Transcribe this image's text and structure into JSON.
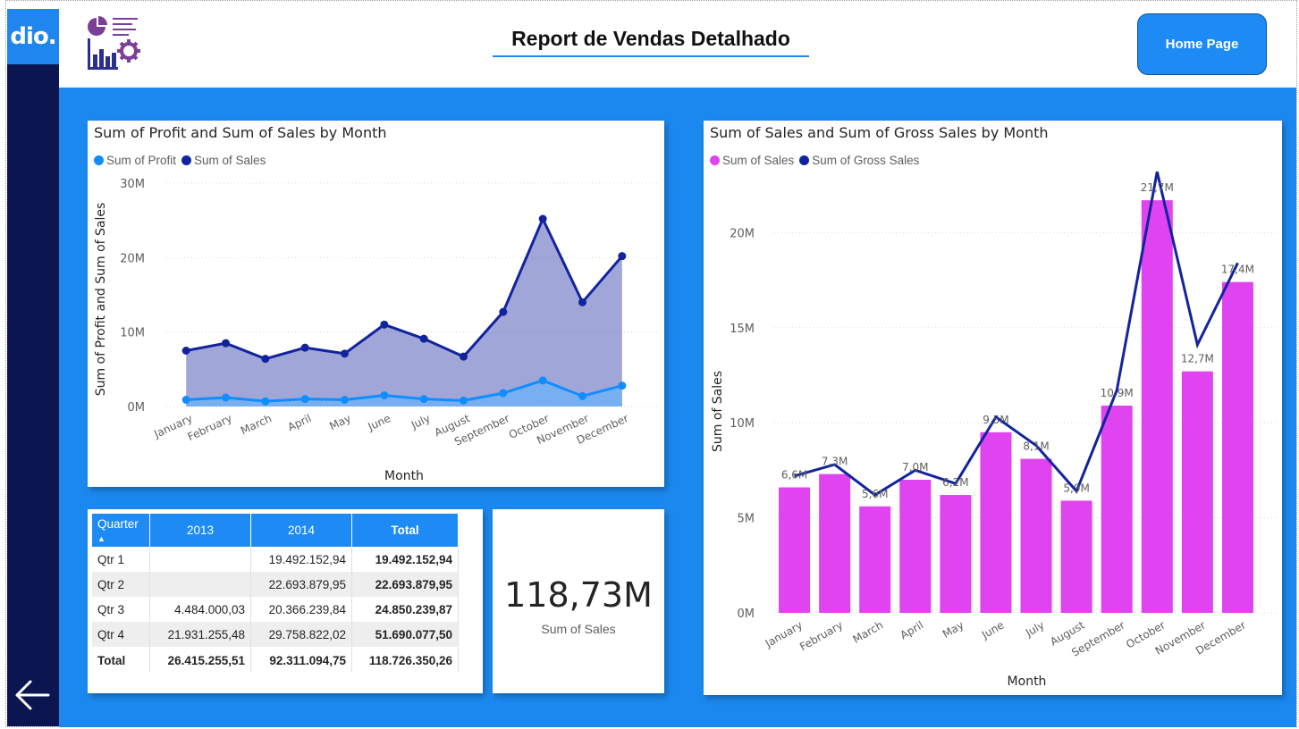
{
  "header": {
    "logo_text": "dio.",
    "title": "Report de Vendas Detalhado",
    "home_button": "Home Page",
    "report_icon": "report-chart-gear-icon",
    "back_icon": "arrow-left-icon"
  },
  "colors": {
    "accent": "#1e8bf5",
    "sidebar": "#0b1650",
    "profit": "#118dff",
    "sales_dark": "#12239e",
    "sales_magenta": "#e044f0"
  },
  "chart_data": [
    {
      "type": "area",
      "title": "Sum of Profit and Sum of Sales by Month",
      "xlabel": "Month",
      "ylabel": "Sum of Profit and Sum of Sales",
      "categories": [
        "January",
        "February",
        "March",
        "April",
        "May",
        "June",
        "July",
        "August",
        "September",
        "October",
        "November",
        "December"
      ],
      "yticks": [
        "0M",
        "10M",
        "20M",
        "30M"
      ],
      "ylim": [
        0,
        30
      ],
      "series": [
        {
          "name": "Sum of Profit",
          "values": [
            0.9,
            1.2,
            0.7,
            1.0,
            0.9,
            1.5,
            1.0,
            0.8,
            1.8,
            3.5,
            1.4,
            2.8
          ]
        },
        {
          "name": "Sum of  Sales",
          "values": [
            7.5,
            8.5,
            6.4,
            7.9,
            7.1,
            11.0,
            9.1,
            6.7,
            12.7,
            25.2,
            14.0,
            20.2
          ]
        }
      ]
    },
    {
      "type": "bar",
      "title": "Sum of Sales and Sum of Gross Sales by Month",
      "xlabel": "Month",
      "ylabel": "Sum of Sales",
      "categories": [
        "January",
        "February",
        "March",
        "April",
        "May",
        "June",
        "July",
        "August",
        "September",
        "October",
        "November",
        "December"
      ],
      "yticks": [
        "0M",
        "5M",
        "10M",
        "15M",
        "20M"
      ],
      "ylim": [
        0,
        22.6
      ],
      "series": [
        {
          "name": "Sum of  Sales",
          "values": [
            6.6,
            7.3,
            5.6,
            7.0,
            6.2,
            9.5,
            8.1,
            5.9,
            10.9,
            21.7,
            12.7,
            17.4
          ],
          "labels": [
            "6,6M",
            "7,3M",
            "5,6M",
            "7,0M",
            "6,2M",
            "9,5M",
            "8,1M",
            "5,9M",
            "10,9M",
            "21,7M",
            "12,7M",
            "17,4M"
          ]
        },
        {
          "name": "Sum of Gross Sales",
          "values": [
            7.2,
            7.8,
            6.2,
            7.5,
            6.8,
            10.3,
            8.8,
            6.4,
            11.7,
            23.2,
            14.1,
            18.4
          ]
        }
      ]
    }
  ],
  "matrix": {
    "headers": [
      "Quarter",
      "2013",
      "2014",
      "Total"
    ],
    "rows": [
      {
        "label": "Qtr 1",
        "y2013": "",
        "y2014": "19.492.152,94",
        "total": "19.492.152,94"
      },
      {
        "label": "Qtr 2",
        "y2013": "",
        "y2014": "22.693.879,95",
        "total": "22.693.879,95"
      },
      {
        "label": "Qtr 3",
        "y2013": "4.484.000,03",
        "y2014": "20.366.239,84",
        "total": "24.850.239,87"
      },
      {
        "label": "Qtr 4",
        "y2013": "21.931.255,48",
        "y2014": "29.758.822,02",
        "total": "51.690.077,50"
      },
      {
        "label": "Total",
        "y2013": "26.415.255,51",
        "y2014": "92.311.094,75",
        "total": "118.726.350,26"
      }
    ]
  },
  "kpi": {
    "value": "118,73M",
    "label": "Sum of  Sales"
  }
}
